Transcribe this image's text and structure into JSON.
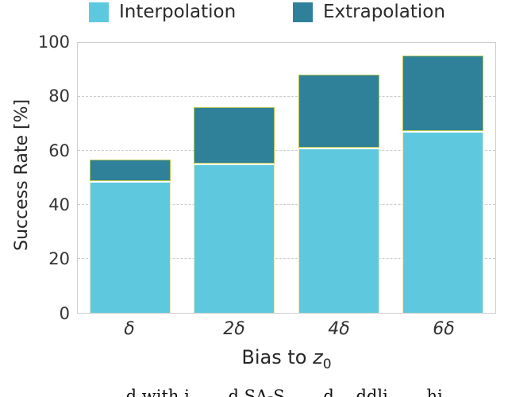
{
  "legend": {
    "items": [
      {
        "label": "Interpolation",
        "color": "#5ec9de"
      },
      {
        "label": "Extrapolation",
        "color": "#2f8199"
      }
    ]
  },
  "chart_data": {
    "type": "bar",
    "stacked": true,
    "categories": [
      "δ",
      "2δ",
      "4δ",
      "6δ"
    ],
    "series": [
      {
        "name": "Interpolation",
        "color": "#5ec9de",
        "values": [
          49,
          55.5,
          61.5,
          67.5
        ]
      },
      {
        "name": "Extrapolation",
        "color": "#2f8199",
        "values": [
          8,
          21,
          27,
          28
        ]
      }
    ],
    "stack_totals": [
      57,
      76.5,
      88.5,
      95.5
    ],
    "title": "",
    "xlabel": "Bias to z₀",
    "ylabel": "Success Rate [%]",
    "ylim": [
      0,
      100
    ],
    "yticks": [
      0,
      20,
      40,
      60,
      80,
      100
    ],
    "grid": "horizontal-dashed",
    "legend_position": "top"
  },
  "axes": {
    "ylabel": "Success Rate [%]",
    "ytick_labels": [
      "100",
      "80",
      "60",
      "40",
      "20",
      "0"
    ],
    "xtick_labels": [
      "δ",
      "2δ",
      "4δ",
      "6δ"
    ],
    "xlabel_prefix": "Bias to ",
    "xlabel_var": "z",
    "xlabel_sub": "0"
  },
  "caption": {
    "fragment": "… …d with i…  …d SA-S…  …d …ddli… …hi…"
  },
  "colors": {
    "interpolation": "#5ec9de",
    "extrapolation": "#2f8199",
    "bar_edge": "#b4c454",
    "segment_divider": "#ffffff",
    "grid": "#cccccc",
    "frame": "#cfcfcf",
    "text": "#262626"
  }
}
